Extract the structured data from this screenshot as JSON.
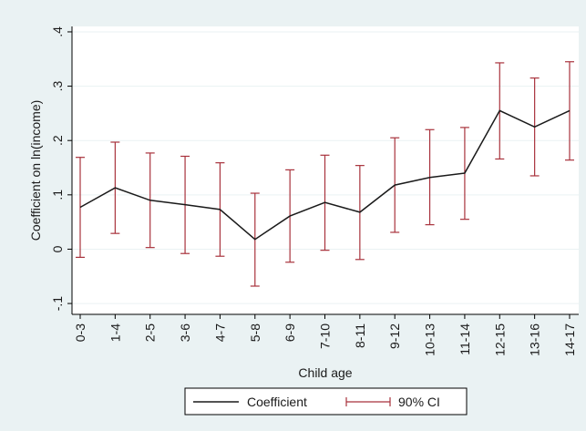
{
  "chart_data": {
    "type": "line",
    "xlabel": "Child age",
    "ylabel": "Coefficient on ln(income)",
    "ylim": [
      -0.12,
      0.41
    ],
    "yticks": [
      -0.1,
      0,
      0.1,
      0.2,
      0.3,
      0.4
    ],
    "ytick_labels": [
      "-.1",
      "0",
      ".1",
      ".2",
      ".3",
      ".4"
    ],
    "categories": [
      "0-3",
      "1-4",
      "2-5",
      "3-6",
      "4-7",
      "5-8",
      "6-9",
      "7-10",
      "8-11",
      "9-12",
      "10-13",
      "11-14",
      "12-15",
      "13-16",
      "14-17"
    ],
    "series": [
      {
        "name": "Coefficient",
        "values": [
          0.077,
          0.113,
          0.09,
          0.082,
          0.073,
          0.018,
          0.061,
          0.086,
          0.068,
          0.118,
          0.132,
          0.14,
          0.255,
          0.225,
          0.255
        ]
      }
    ],
    "ci": {
      "name": "90% CI",
      "lower": [
        -0.015,
        0.029,
        0.003,
        -0.008,
        -0.013,
        -0.068,
        -0.024,
        -0.002,
        -0.019,
        0.031,
        0.045,
        0.055,
        0.166,
        0.135,
        0.164
      ],
      "upper": [
        0.169,
        0.197,
        0.177,
        0.171,
        0.159,
        0.103,
        0.146,
        0.173,
        0.154,
        0.205,
        0.22,
        0.224,
        0.343,
        0.315,
        0.345
      ]
    },
    "grid": true,
    "legend_position": "bottom",
    "colors": {
      "line": "#1a1a1a",
      "ci": "#a8323c",
      "grid": "#eaf2f3",
      "plot_bg": "#ffffff",
      "outer_bg": "#eaf2f3"
    }
  }
}
